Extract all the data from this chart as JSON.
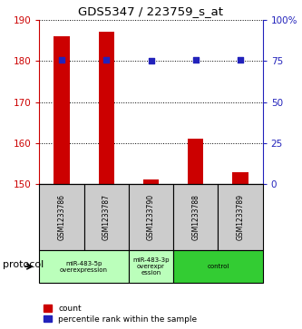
{
  "title": "GDS5347 / 223759_s_at",
  "samples": [
    "GSM1233786",
    "GSM1233787",
    "GSM1233790",
    "GSM1233788",
    "GSM1233789"
  ],
  "bar_values": [
    186.0,
    187.0,
    151.2,
    161.0,
    153.0
  ],
  "bar_base": 150,
  "percentile_values": [
    75.5,
    75.5,
    75.0,
    75.5,
    75.5
  ],
  "ylim_left": [
    150,
    190
  ],
  "ylim_right": [
    0,
    100
  ],
  "yticks_left": [
    150,
    160,
    170,
    180,
    190
  ],
  "yticks_right": [
    0,
    25,
    50,
    75,
    100
  ],
  "ytick_labels_right": [
    "0",
    "25",
    "50",
    "75",
    "100%"
  ],
  "bar_color": "#cc0000",
  "dot_color": "#2222bb",
  "protocol_groups": [
    {
      "label": "miR-483-5p\noverexpression",
      "indices": [
        0,
        1
      ],
      "color": "#bbffbb"
    },
    {
      "label": "miR-483-3p\noverexpr\nession",
      "indices": [
        2
      ],
      "color": "#bbffbb"
    },
    {
      "label": "control",
      "indices": [
        3,
        4
      ],
      "color": "#33cc33"
    }
  ],
  "protocol_label": "protocol",
  "legend_bar_label": "count",
  "legend_dot_label": "percentile rank within the sample",
  "background_color": "#ffffff",
  "left_axis_color": "#cc0000",
  "right_axis_color": "#2222bb",
  "bar_width": 0.35
}
